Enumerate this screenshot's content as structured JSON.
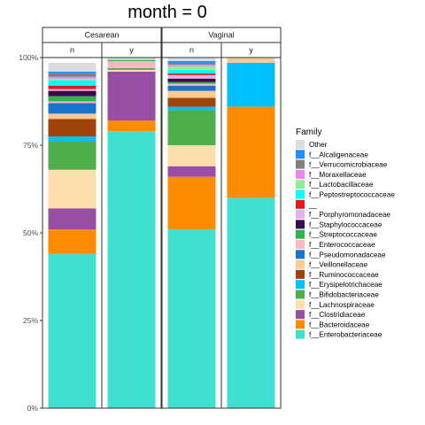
{
  "chart_data": {
    "type": "bar",
    "stacked": true,
    "normalized": true,
    "title": "month = 0",
    "xlabel": "",
    "ylabel": "",
    "ylim": [
      0,
      1
    ],
    "yticks": [
      0,
      0.25,
      0.5,
      0.75,
      1.0
    ],
    "ytick_labels": [
      "0%",
      "25%",
      "50%",
      "75%",
      "100%"
    ],
    "grid": false,
    "legend_position": "right",
    "legend_title": "Family",
    "facets": [
      {
        "label": "Cesarean",
        "categories": [
          "n",
          "y"
        ]
      },
      {
        "label": "Vaginal",
        "categories": [
          "n",
          "y"
        ]
      }
    ],
    "families": [
      {
        "name": "f__Enterobacteriaceae",
        "color": "#40E0D0"
      },
      {
        "name": "f__Bacteroidaceae",
        "color": "#FF8C00"
      },
      {
        "name": "f__Clostridiaceae",
        "color": "#984EA3"
      },
      {
        "name": "f__Lachnospiraceae",
        "color": "#FFDEAD"
      },
      {
        "name": "f__Bifidobacteriaceae",
        "color": "#4DAF4A"
      },
      {
        "name": "f__Erysipelotrichaceae",
        "color": "#00BFFF"
      },
      {
        "name": "f__Ruminococcaceae",
        "color": "#A0420A"
      },
      {
        "name": "f__Veillonellaceae",
        "color": "#FFC994"
      },
      {
        "name": "f__Pseudomonadaceae",
        "color": "#1874CD"
      },
      {
        "name": "f__Enterococcaceae",
        "color": "#FFB6C1"
      },
      {
        "name": "f__Streptococcaceae",
        "color": "#2DB34A"
      },
      {
        "name": "f__Staphylococcaceae",
        "color": "#3A0A4E"
      },
      {
        "name": "f__Porphyromonadaceae",
        "color": "#E8B0E8"
      },
      {
        "name": "__",
        "color": "#E41A1C"
      },
      {
        "name": "f__Peptostreptococcaceae",
        "color": "#00FFFF"
      },
      {
        "name": "f__Lactobacillaceae",
        "color": "#90EE90"
      },
      {
        "name": "f__Moraxellaceae",
        "color": "#EE82EE"
      },
      {
        "name": "f__Verrucomicrobiaceae",
        "color": "#808080"
      },
      {
        "name": "f__Alcaligenaceae",
        "color": "#1E90FF"
      },
      {
        "name": "Other",
        "color": "#DCDCDC"
      }
    ],
    "bars": [
      {
        "facet": "Cesarean",
        "category": "n",
        "values": [
          0.44,
          0.07,
          0.06,
          0.11,
          0.08,
          0.015,
          0.05,
          0.015,
          0.03,
          0.005,
          0.015,
          0.015,
          0.005,
          0.01,
          0.015,
          0.005,
          0.005,
          0.01,
          0.005,
          0.025
        ]
      },
      {
        "facet": "Cesarean",
        "category": "y",
        "values": [
          0.79,
          0.03,
          0.14,
          0.005,
          0.005,
          0,
          0,
          0,
          0,
          0.02,
          0.003,
          0,
          0,
          0,
          0,
          0.002,
          0,
          0,
          0,
          0.005
        ]
      },
      {
        "facet": "Vaginal",
        "category": "n",
        "values": [
          0.51,
          0.15,
          0.03,
          0.06,
          0.1,
          0.01,
          0.025,
          0.02,
          0.015,
          0.005,
          0.005,
          0.01,
          0.01,
          0.005,
          0.01,
          0.01,
          0.005,
          0.005,
          0.005,
          0.01
        ]
      },
      {
        "facet": "Vaginal",
        "category": "y",
        "values": [
          0.6,
          0.26,
          0,
          0,
          0,
          0.125,
          0,
          0.015,
          0,
          0,
          0,
          0,
          0,
          0,
          0,
          0,
          0,
          0,
          0,
          0
        ]
      }
    ]
  }
}
